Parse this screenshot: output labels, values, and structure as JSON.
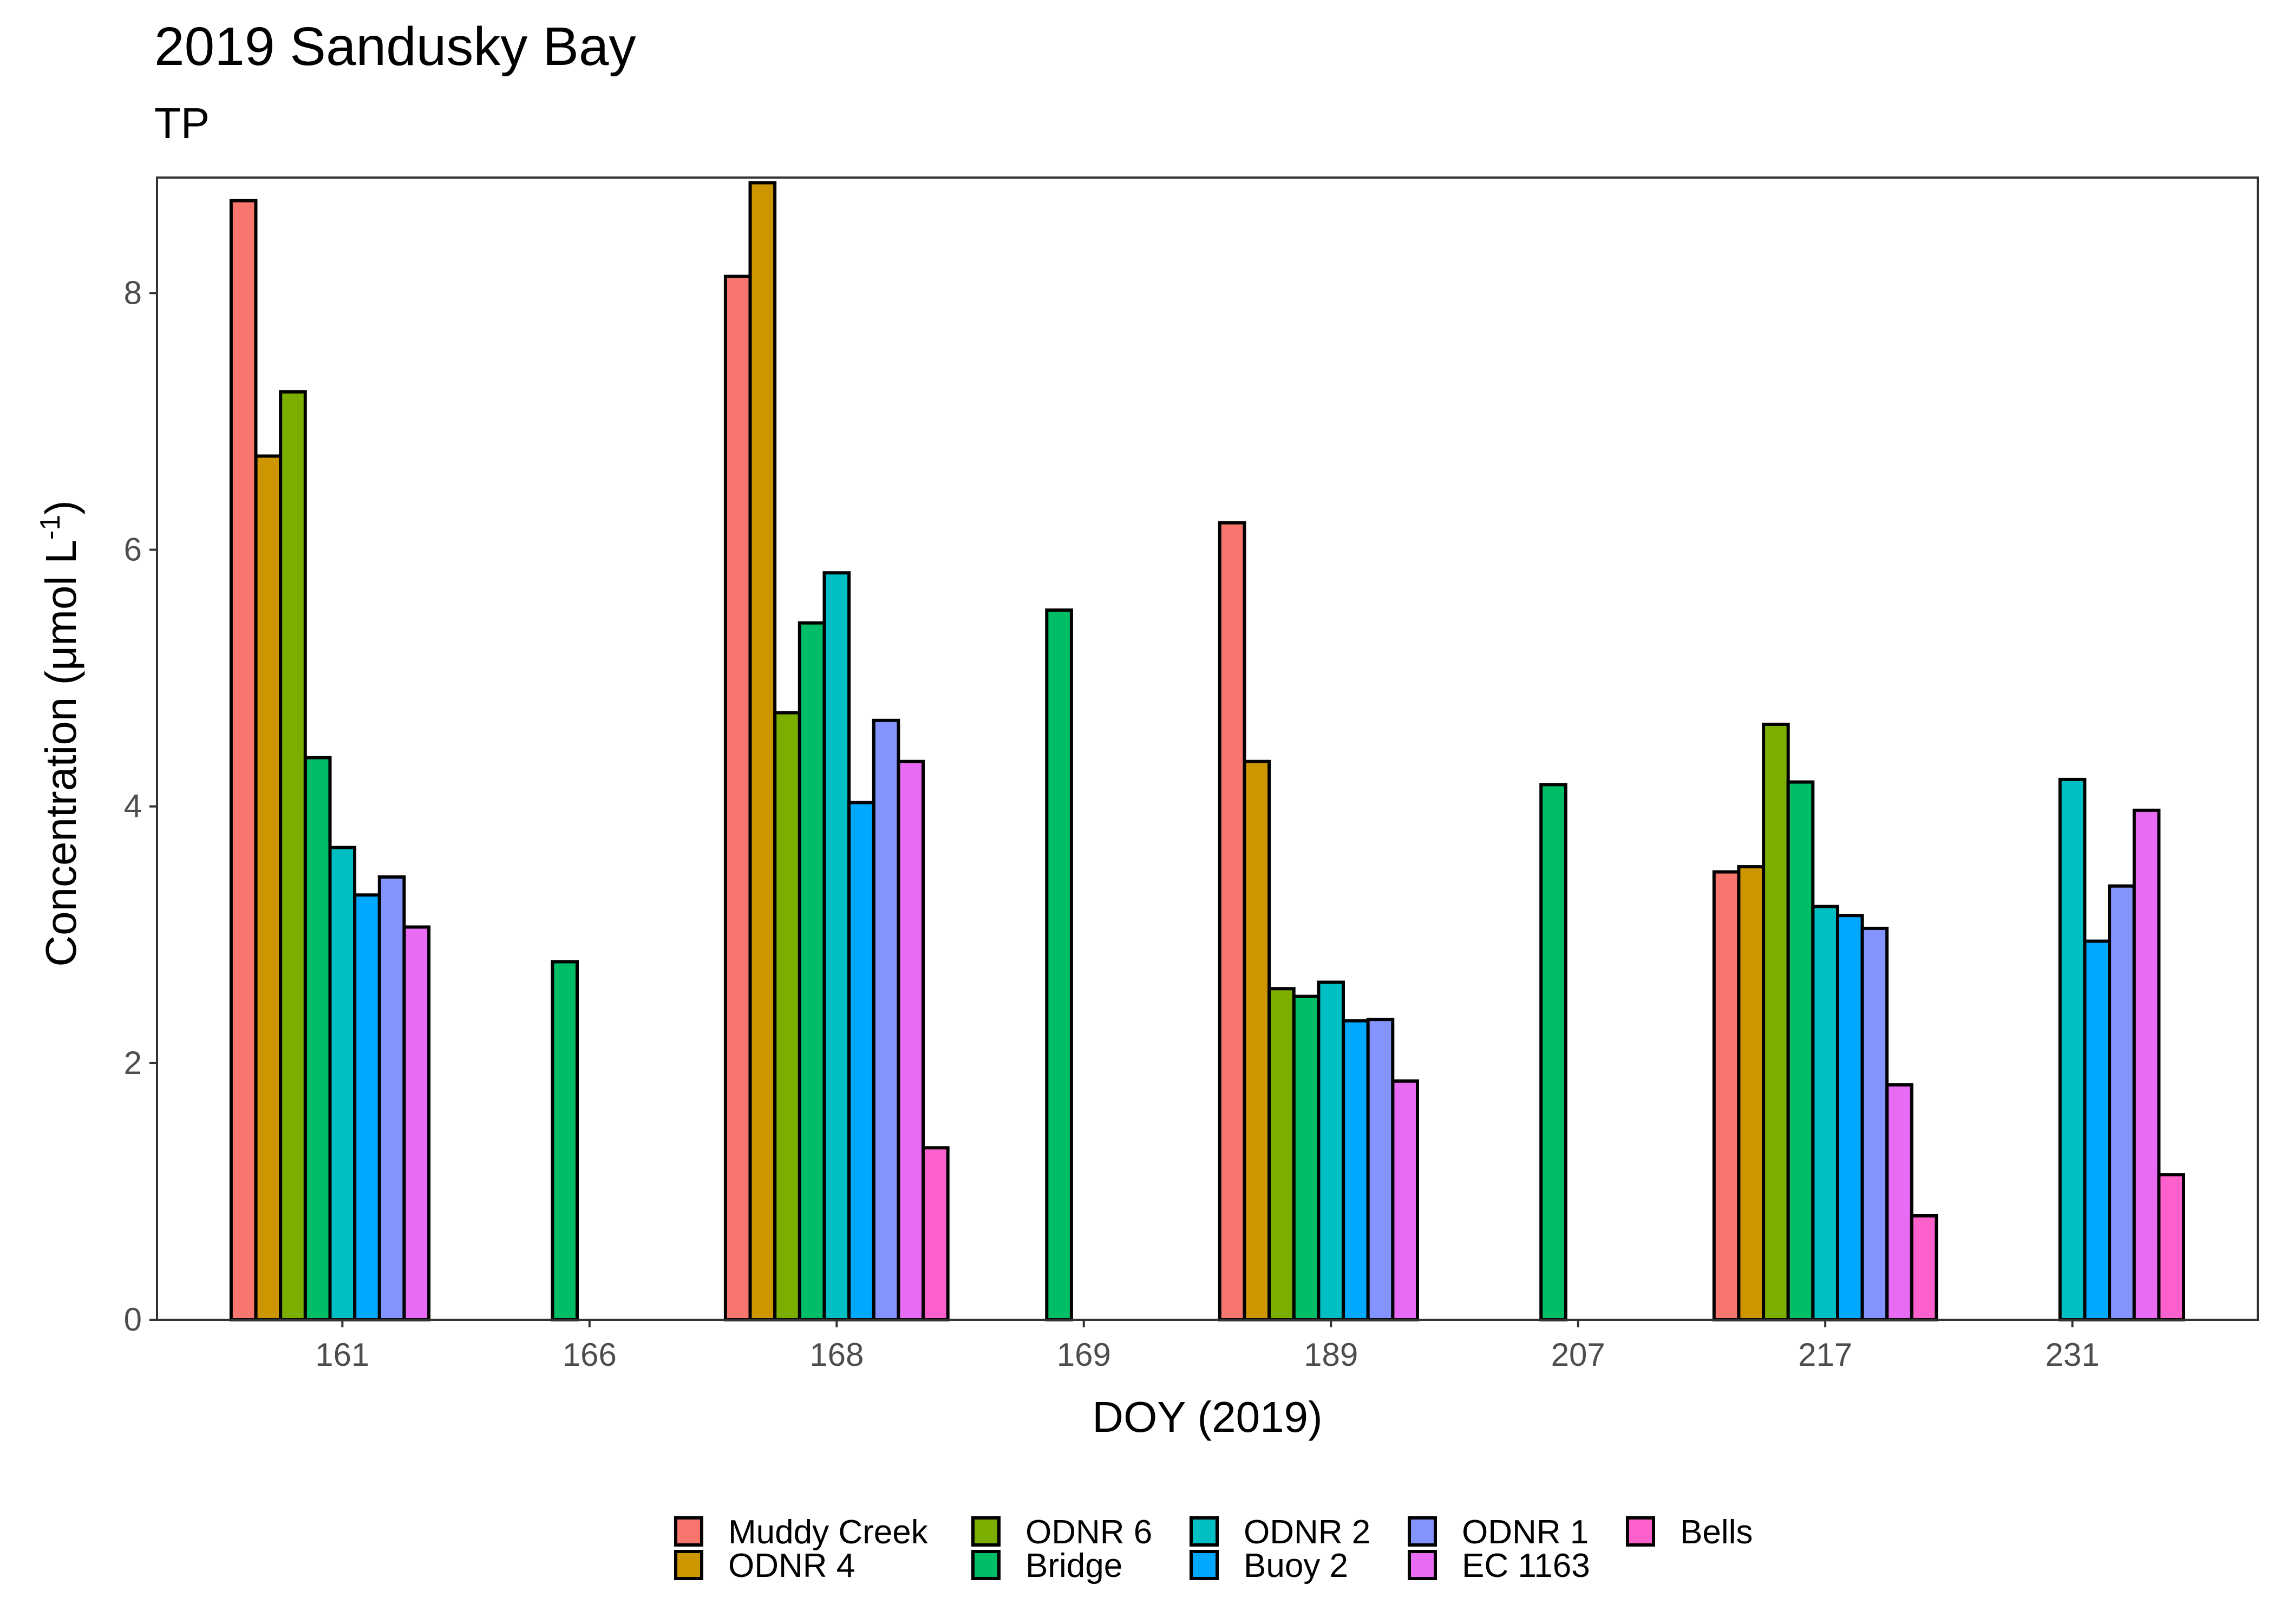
{
  "chart_data": {
    "type": "bar",
    "title": "2019 Sandusky Bay",
    "subtitle": "TP",
    "xlabel": "DOY (2019)",
    "ylabel": "Concentration (μmol L",
    "ylabel_sup": "-1",
    "ylabel_close": ")",
    "ylim": [
      0,
      8.9
    ],
    "yticks": [
      0,
      2,
      4,
      6,
      8
    ],
    "grid": false,
    "legend_position": "bottom",
    "categories": [
      "161",
      "166",
      "168",
      "169",
      "189",
      "207",
      "217",
      "231"
    ],
    "series": [
      {
        "name": "Muddy Creek",
        "color": "#F8766D",
        "values": [
          8.72,
          null,
          8.13,
          null,
          6.21,
          null,
          3.49,
          null
        ]
      },
      {
        "name": "ODNR 4",
        "color": "#CD9600",
        "values": [
          6.73,
          null,
          8.86,
          null,
          4.35,
          null,
          3.53,
          null
        ]
      },
      {
        "name": "ODNR 6",
        "color": "#7CAE00",
        "values": [
          7.23,
          null,
          4.73,
          null,
          2.58,
          null,
          4.64,
          null
        ]
      },
      {
        "name": "Bridge",
        "color": "#00BE67",
        "values": [
          4.38,
          2.79,
          5.43,
          5.53,
          2.52,
          4.17,
          4.19,
          null
        ]
      },
      {
        "name": "ODNR 2",
        "color": "#00BFC4",
        "values": [
          3.68,
          null,
          5.82,
          null,
          2.63,
          null,
          3.22,
          4.21
        ]
      },
      {
        "name": "Buoy 2",
        "color": "#00A9FF",
        "values": [
          3.31,
          null,
          4.03,
          null,
          2.33,
          null,
          3.15,
          2.95
        ]
      },
      {
        "name": "ODNR 1",
        "color": "#8494FF",
        "values": [
          3.45,
          null,
          4.67,
          null,
          2.34,
          null,
          3.05,
          3.38
        ]
      },
      {
        "name": "EC 1163",
        "color": "#E76BF3",
        "values": [
          3.06,
          null,
          4.35,
          null,
          1.86,
          null,
          1.83,
          3.97
        ]
      },
      {
        "name": "Bells",
        "color": "#FF61CC",
        "values": [
          null,
          null,
          1.34,
          null,
          null,
          null,
          0.81,
          1.13
        ]
      }
    ]
  }
}
